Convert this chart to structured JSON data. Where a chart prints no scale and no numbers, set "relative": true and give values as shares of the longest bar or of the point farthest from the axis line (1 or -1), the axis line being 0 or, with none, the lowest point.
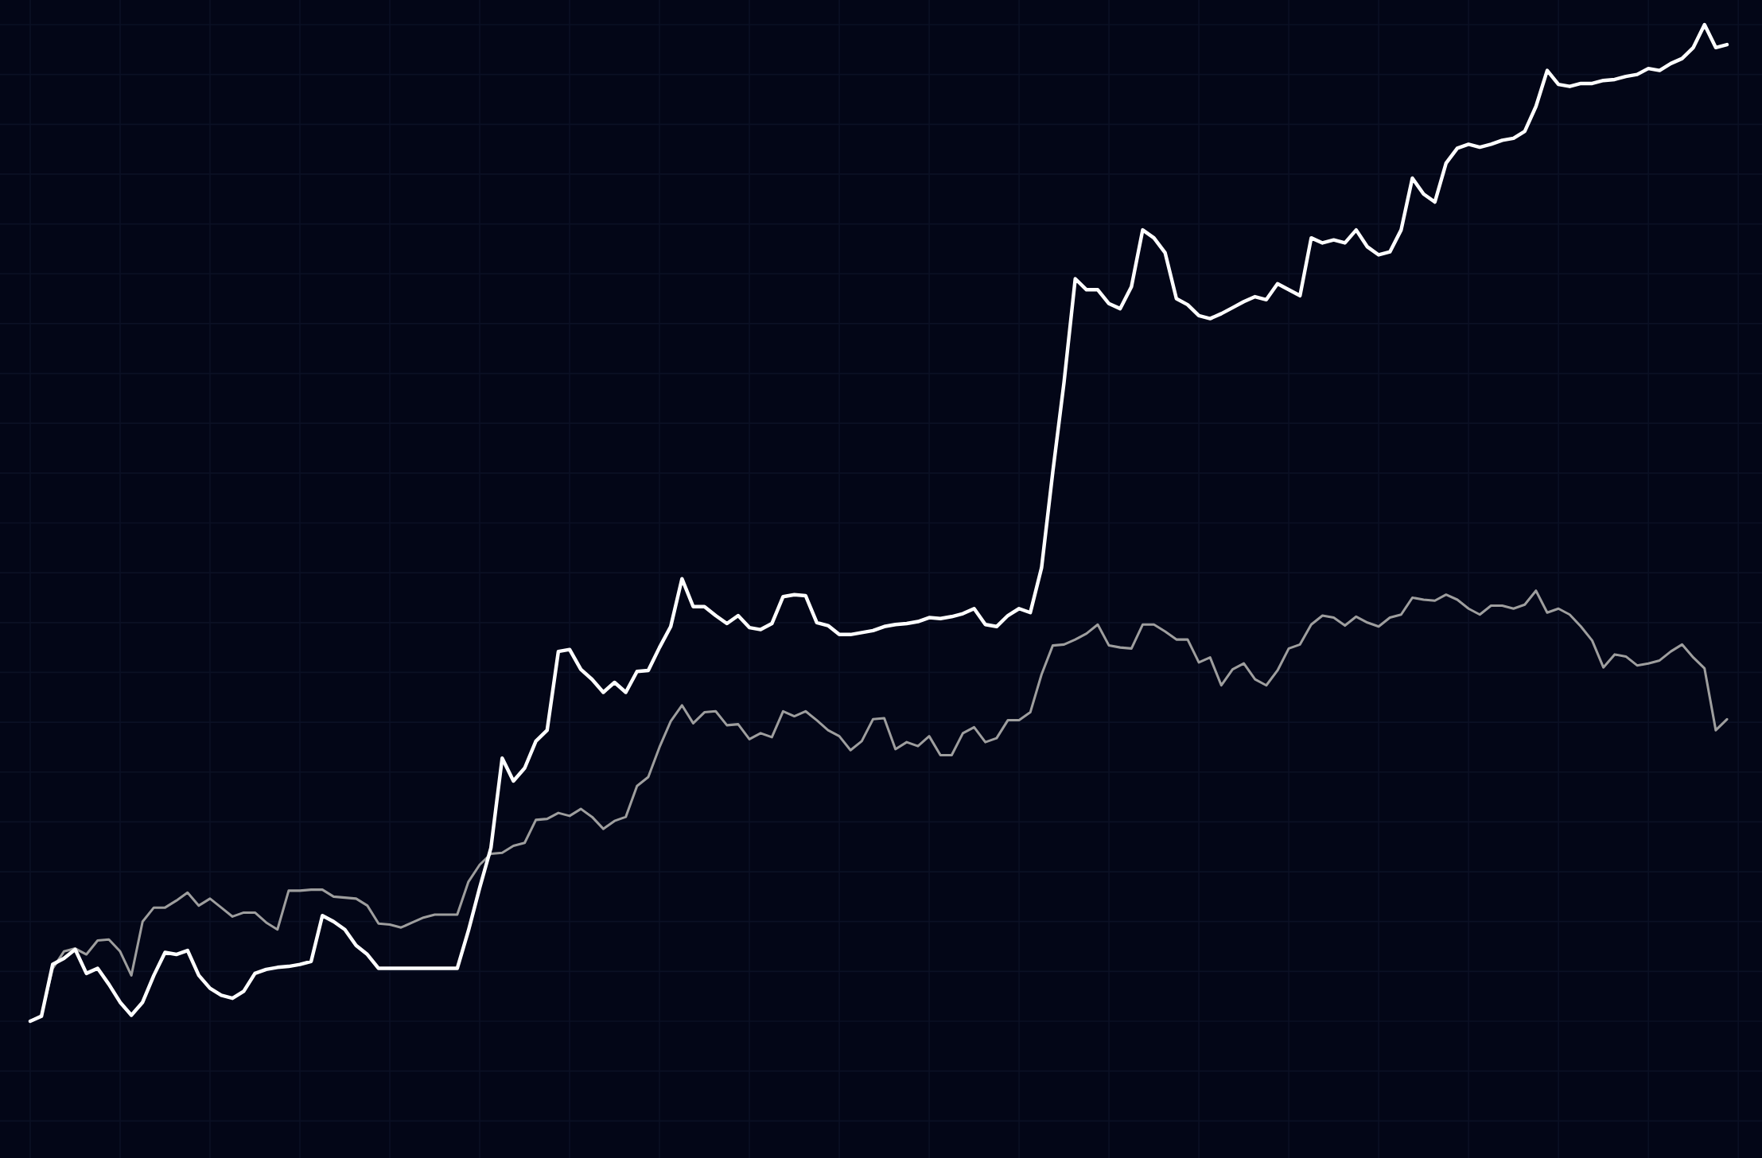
{
  "chart_data": {
    "type": "line",
    "relative": true,
    "grid": true,
    "categories": [
      null,
      null,
      null,
      null,
      null,
      null,
      null,
      null,
      null,
      null,
      null,
      null,
      null,
      null,
      null,
      null,
      null,
      null,
      null,
      null,
      null,
      null,
      null,
      null,
      null,
      null,
      null,
      null,
      null,
      null,
      null,
      null,
      null,
      null,
      null,
      null,
      null,
      null,
      null,
      null,
      null,
      null,
      null,
      null,
      null,
      null,
      null,
      null,
      null,
      null,
      null,
      null,
      null,
      null,
      null,
      null,
      null,
      null,
      null,
      null,
      null,
      null,
      null,
      null,
      null,
      null,
      null,
      null,
      null,
      null,
      null,
      null,
      null,
      null,
      null,
      null,
      null,
      null,
      null,
      null,
      null,
      null,
      null,
      null,
      null,
      null,
      null,
      null,
      null,
      null,
      null,
      null,
      null,
      null,
      null,
      null,
      null,
      null,
      null,
      null,
      null,
      null,
      null,
      null,
      null,
      null,
      null,
      null,
      null,
      null,
      null,
      null,
      null,
      null,
      null,
      null,
      null,
      null,
      null,
      null,
      null,
      null,
      null,
      null,
      null,
      null,
      null,
      null,
      null,
      null,
      null,
      null,
      null,
      null,
      null,
      null,
      null,
      null,
      null,
      null,
      null,
      null,
      null,
      null,
      null,
      null,
      null,
      null,
      null,
      null,
      null,
      null
    ],
    "series": [
      {
        "color": "#9e9e9e",
        "values": [
          0,
          0.006,
          0.053,
          0.07,
          0.073,
          0.067,
          0.081,
          0.082,
          0.07,
          0.046,
          0.1,
          0.114,
          0.114,
          0.121,
          0.129,
          0.116,
          0.123,
          0.114,
          0.105,
          0.109,
          0.109,
          0.099,
          0.092,
          0.131,
          0.131,
          0.132,
          0.132,
          0.125,
          0.124,
          0.123,
          0.116,
          0.098,
          0.097,
          0.094,
          0.099,
          0.104,
          0.107,
          0.107,
          0.107,
          0.14,
          0.157,
          0.168,
          0.169,
          0.176,
          0.179,
          0.202,
          0.203,
          0.209,
          0.206,
          0.213,
          0.205,
          0.193,
          0.201,
          0.205,
          0.236,
          0.245,
          0.275,
          0.301,
          0.317,
          0.299,
          0.31,
          0.311,
          0.297,
          0.298,
          0.283,
          0.289,
          0.285,
          0.311,
          0.306,
          0.311,
          0.302,
          0.292,
          0.286,
          0.272,
          0.281,
          0.303,
          0.304,
          0.273,
          0.28,
          0.276,
          0.286,
          0.267,
          0.267,
          0.289,
          0.295,
          0.28,
          0.284,
          0.302,
          0.302,
          0.31,
          0.348,
          0.377,
          0.378,
          0.383,
          0.389,
          0.398,
          0.377,
          0.375,
          0.374,
          0.398,
          0.398,
          0.391,
          0.383,
          0.383,
          0.36,
          0.365,
          0.337,
          0.353,
          0.359,
          0.343,
          0.337,
          0.352,
          0.374,
          0.378,
          0.398,
          0.407,
          0.405,
          0.397,
          0.406,
          0.4,
          0.396,
          0.405,
          0.408,
          0.425,
          0.423,
          0.422,
          0.428,
          0.423,
          0.414,
          0.408,
          0.417,
          0.417,
          0.414,
          0.418,
          0.432,
          0.41,
          0.414,
          0.408,
          0.396,
          0.382,
          0.355,
          0.368,
          0.366,
          0.357,
          0.359,
          0.362,
          0.371,
          0.378,
          0.365,
          0.354,
          0.292,
          0.303
        ]
      },
      {
        "color": "#ffffff",
        "values": [
          0,
          0.005,
          0.057,
          0.063,
          0.072,
          0.048,
          0.053,
          0.037,
          0.019,
          0.006,
          0.019,
          0.046,
          0.069,
          0.067,
          0.071,
          0.046,
          0.033,
          0.026,
          0.023,
          0.03,
          0.048,
          0.052,
          0.054,
          0.055,
          0.057,
          0.06,
          0.106,
          0.1,
          0.092,
          0.076,
          0.067,
          0.053,
          0.053,
          0.053,
          0.053,
          0.053,
          0.053,
          0.053,
          0.053,
          0.091,
          0.134,
          0.174,
          0.264,
          0.241,
          0.254,
          0.281,
          0.292,
          0.371,
          0.373,
          0.353,
          0.343,
          0.33,
          0.34,
          0.33,
          0.351,
          0.352,
          0.375,
          0.396,
          0.444,
          0.416,
          0.416,
          0.407,
          0.399,
          0.407,
          0.395,
          0.393,
          0.399,
          0.426,
          0.428,
          0.427,
          0.4,
          0.397,
          0.388,
          0.388,
          0.39,
          0.392,
          0.396,
          0.398,
          0.399,
          0.401,
          0.405,
          0.404,
          0.406,
          0.409,
          0.414,
          0.398,
          0.396,
          0.407,
          0.414,
          0.41,
          0.455,
          0.551,
          0.641,
          0.745,
          0.734,
          0.734,
          0.72,
          0.715,
          0.737,
          0.794,
          0.786,
          0.771,
          0.725,
          0.719,
          0.708,
          0.705,
          0.71,
          0.716,
          0.722,
          0.727,
          0.724,
          0.74,
          0.734,
          0.728,
          0.786,
          0.781,
          0.784,
          0.781,
          0.794,
          0.777,
          0.769,
          0.772,
          0.794,
          0.846,
          0.83,
          0.822,
          0.861,
          0.876,
          0.88,
          0.877,
          0.88,
          0.884,
          0.886,
          0.893,
          0.918,
          0.954,
          0.94,
          0.938,
          0.941,
          0.941,
          0.944,
          0.945,
          0.948,
          0.95,
          0.956,
          0.954,
          0.961,
          0.966,
          0.977,
          1,
          0.977,
          0.98
        ]
      }
    ]
  }
}
